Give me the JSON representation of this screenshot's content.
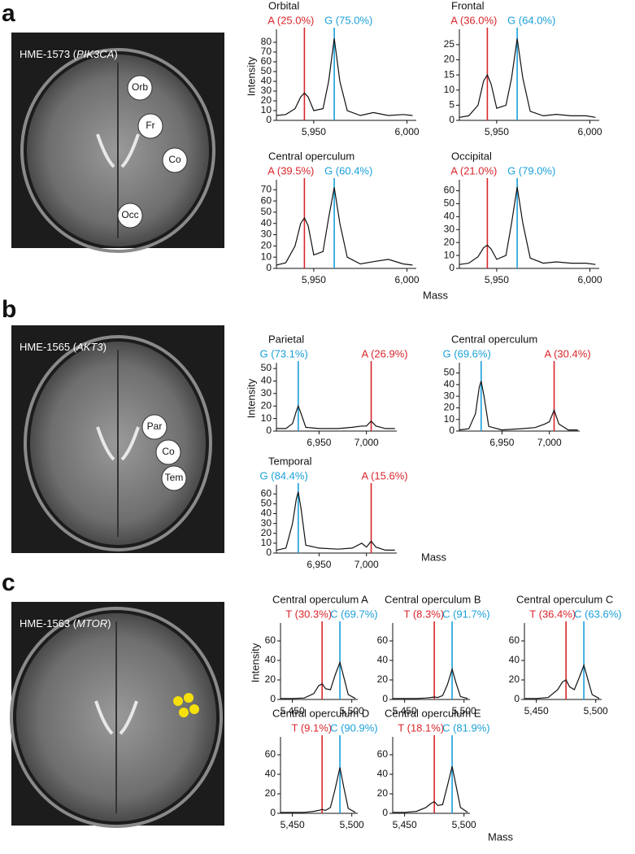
{
  "panels": [
    {
      "letter": "a",
      "caption": "HME-1573 (",
      "gene": "PIK3CA",
      "caption_end": ")",
      "regions": [
        "Orb",
        "Fr",
        "Co",
        "Occ"
      ]
    },
    {
      "letter": "b",
      "caption": "HME-1565 (",
      "gene": "AKT3",
      "caption_end": ")",
      "regions": [
        "Par",
        "Co",
        "Tem"
      ]
    },
    {
      "letter": "c",
      "caption": "HME-1563 (",
      "gene": "MTOR",
      "caption_end": ")",
      "regions": []
    }
  ],
  "chart_data": [
    {
      "type": "line",
      "title": "Orbital",
      "y_label": "Intensity",
      "x": [
        5930,
        5935,
        5940,
        5943,
        5945,
        5947,
        5950,
        5955,
        5958,
        5961,
        5964,
        5968,
        5975,
        5982,
        5990,
        5998,
        6003
      ],
      "values": [
        5,
        6,
        12,
        24,
        28,
        24,
        10,
        12,
        40,
        84,
        40,
        10,
        5,
        8,
        5,
        6,
        5
      ],
      "color": "#111111",
      "markers": [
        {
          "label": "A (25.0%)",
          "x": 5945,
          "color": "#d9262b"
        },
        {
          "label": "G (75.0%)",
          "x": 5961,
          "color": "#1a9fd9"
        }
      ],
      "xlim": [
        5930,
        6005
      ],
      "xticks": [
        {
          "value": 5950,
          "label": "5,950"
        },
        {
          "value": 6000,
          "label": "6,000"
        }
      ],
      "ylim": [
        0,
        90
      ],
      "yticks": [
        0,
        10,
        20,
        30,
        40,
        50,
        60,
        70,
        80
      ]
    },
    {
      "type": "line",
      "title": "Frontal",
      "x": [
        5930,
        5935,
        5940,
        5943,
        5945,
        5947,
        5950,
        5955,
        5958,
        5961,
        5964,
        5968,
        5975,
        5982,
        5990,
        5998,
        6003
      ],
      "values": [
        1,
        1.5,
        5,
        13,
        15,
        12,
        4,
        5,
        14,
        27,
        14,
        3,
        1.5,
        2,
        1.5,
        1.5,
        1
      ],
      "color": "#111111",
      "markers": [
        {
          "label": "A (36.0%)",
          "x": 5945,
          "color": "#d9262b"
        },
        {
          "label": "G (64.0%)",
          "x": 5961,
          "color": "#1a9fd9"
        }
      ],
      "xlim": [
        5930,
        6005
      ],
      "xticks": [
        {
          "value": 5950,
          "label": "5,950"
        },
        {
          "value": 6000,
          "label": "6,000"
        }
      ],
      "ylim": [
        0,
        29
      ],
      "yticks": [
        0,
        5,
        10,
        15,
        20,
        25
      ]
    },
    {
      "type": "line",
      "title": "Central operculum",
      "x": [
        5930,
        5935,
        5940,
        5943,
        5945,
        5947,
        5950,
        5955,
        5958,
        5961,
        5964,
        5968,
        5975,
        5982,
        5990,
        5998,
        6003
      ],
      "values": [
        3,
        5,
        20,
        40,
        45,
        38,
        12,
        15,
        45,
        72,
        40,
        10,
        4,
        6,
        8,
        4,
        3
      ],
      "color": "#111111",
      "markers": [
        {
          "label": "A (39.5%)",
          "x": 5945,
          "color": "#d9262b"
        },
        {
          "label": "G (60.4%)",
          "x": 5961,
          "color": "#1a9fd9"
        }
      ],
      "xlim": [
        5930,
        6005
      ],
      "xticks": [
        {
          "value": 5950,
          "label": "5,950"
        },
        {
          "value": 6000,
          "label": "6,000"
        }
      ],
      "ylim": [
        0,
        76
      ],
      "yticks": [
        0,
        10,
        20,
        30,
        40,
        50,
        60,
        70
      ]
    },
    {
      "type": "line",
      "title": "Occipital",
      "x_label": "Mass",
      "x": [
        5930,
        5935,
        5940,
        5943,
        5945,
        5947,
        5950,
        5955,
        5958,
        5961,
        5964,
        5968,
        5975,
        5982,
        5990,
        5998,
        6003
      ],
      "values": [
        3,
        4,
        9,
        16,
        18,
        15,
        7,
        10,
        35,
        63,
        35,
        8,
        4,
        5,
        4,
        4,
        3
      ],
      "color": "#111111",
      "markers": [
        {
          "label": "A (21.0%)",
          "x": 5945,
          "color": "#d9262b"
        },
        {
          "label": "G (79.0%)",
          "x": 5961,
          "color": "#1a9fd9"
        }
      ],
      "xlim": [
        5930,
        6005
      ],
      "xticks": [
        {
          "value": 5950,
          "label": "5,950"
        },
        {
          "value": 6000,
          "label": "6,000"
        }
      ],
      "ylim": [
        0,
        66
      ],
      "yticks": [
        0,
        10,
        20,
        30,
        40,
        50,
        60
      ]
    },
    {
      "type": "line",
      "title": "Parietal",
      "y_label": "Intensity",
      "x": [
        6905,
        6915,
        6922,
        6926,
        6928,
        6931,
        6936,
        6950,
        6970,
        6985,
        6995,
        7000,
        7005,
        7010,
        7020,
        7030
      ],
      "values": [
        2,
        2,
        6,
        16,
        20,
        14,
        3,
        2,
        2,
        3,
        4,
        4,
        8,
        4,
        2,
        2
      ],
      "color": "#111111",
      "markers": [
        {
          "label": "G (73.1%)",
          "x": 6928,
          "color": "#1a9fd9"
        },
        {
          "label": "A (26.9%)",
          "x": 7005,
          "color": "#d9262b"
        }
      ],
      "xlim": [
        6905,
        7032
      ],
      "xticks": [
        {
          "value": 6950,
          "label": "6,950"
        },
        {
          "value": 7000,
          "label": "7,000"
        }
      ],
      "ylim": [
        0,
        52
      ],
      "yticks": [
        0,
        10,
        20,
        30,
        40,
        50
      ]
    },
    {
      "type": "line",
      "title": "Central operculum",
      "x": [
        6905,
        6915,
        6922,
        6926,
        6928,
        6931,
        6936,
        6950,
        6970,
        6985,
        6995,
        7000,
        7005,
        7010,
        7020,
        7030
      ],
      "values": [
        1,
        2,
        15,
        38,
        43,
        30,
        4,
        1,
        2,
        3,
        6,
        8,
        18,
        6,
        1,
        1
      ],
      "color": "#111111",
      "markers": [
        {
          "label": "G (69.6%)",
          "x": 6928,
          "color": "#1a9fd9"
        },
        {
          "label": "A (30.4%)",
          "x": 7005,
          "color": "#d9262b"
        }
      ],
      "xlim": [
        6905,
        7032
      ],
      "xticks": [
        {
          "value": 6950,
          "label": "6,950"
        },
        {
          "value": 7000,
          "label": "7,000"
        }
      ],
      "ylim": [
        0,
        56
      ],
      "yticks": [
        0,
        10,
        20,
        30,
        40,
        50
      ]
    },
    {
      "type": "line",
      "title": "Temporal",
      "x_label": "Mass",
      "x": [
        6905,
        6915,
        6922,
        6926,
        6928,
        6931,
        6936,
        6950,
        6970,
        6985,
        6995,
        7000,
        7005,
        7010,
        7020,
        7030
      ],
      "values": [
        3,
        5,
        30,
        55,
        62,
        45,
        8,
        5,
        4,
        5,
        10,
        6,
        12,
        6,
        3,
        3
      ],
      "color": "#111111",
      "markers": [
        {
          "label": "G (84.4%)",
          "x": 6928,
          "color": "#1a9fd9"
        },
        {
          "label": "A (15.6%)",
          "x": 7005,
          "color": "#d9262b"
        }
      ],
      "xlim": [
        6905,
        7032
      ],
      "xticks": [
        {
          "value": 6950,
          "label": "6,950"
        },
        {
          "value": 7000,
          "label": "7,000"
        }
      ],
      "ylim": [
        0,
        66
      ],
      "yticks": [
        0,
        10,
        20,
        30,
        40,
        50,
        60
      ]
    },
    {
      "type": "line",
      "title": "Central operculum A",
      "y_label": "Intensity",
      "x": [
        5440,
        5450,
        5460,
        5468,
        5472,
        5475,
        5478,
        5482,
        5486,
        5490,
        5493,
        5497,
        5503
      ],
      "values": [
        1,
        1,
        1.5,
        6,
        14,
        16,
        11,
        10,
        25,
        38,
        24,
        5,
        1
      ],
      "color": "#111111",
      "markers": [
        {
          "label": "T (30.3%)",
          "x": 5475,
          "color": "#d9262b"
        },
        {
          "label": "C (69.7%)",
          "x": 5490,
          "color": "#1a9fd9"
        }
      ],
      "xlim": [
        5440,
        5505
      ],
      "xticks": [
        {
          "value": 5450,
          "label": "5,450"
        },
        {
          "value": 5500,
          "label": "5,500"
        }
      ],
      "ylim": [
        0,
        75
      ],
      "yticks": [
        0,
        20,
        40,
        60
      ]
    },
    {
      "type": "line",
      "title": "Central operculum B",
      "x": [
        5440,
        5450,
        5460,
        5468,
        5472,
        5475,
        5478,
        5482,
        5486,
        5490,
        5493,
        5497,
        5503
      ],
      "values": [
        1,
        1,
        1,
        1.5,
        2,
        2.5,
        2,
        4,
        15,
        31,
        18,
        3,
        1
      ],
      "color": "#111111",
      "markers": [
        {
          "label": "T (8.3%)",
          "x": 5475,
          "color": "#d9262b"
        },
        {
          "label": "C (91.7%)",
          "x": 5490,
          "color": "#1a9fd9"
        }
      ],
      "xlim": [
        5440,
        5505
      ],
      "xticks": [
        {
          "value": 5450,
          "label": "5,450"
        },
        {
          "value": 5500,
          "label": "5,500"
        }
      ],
      "ylim": [
        0,
        75
      ],
      "yticks": [
        0,
        20,
        40,
        60
      ]
    },
    {
      "type": "line",
      "title": "Central operculum C",
      "x": [
        5440,
        5450,
        5460,
        5468,
        5472,
        5475,
        5478,
        5482,
        5486,
        5490,
        5493,
        5497,
        5503
      ],
      "values": [
        1,
        1,
        2,
        10,
        18,
        20,
        13,
        10,
        22,
        35,
        22,
        5,
        1
      ],
      "color": "#111111",
      "markers": [
        {
          "label": "T (36.4%)",
          "x": 5475,
          "color": "#d9262b"
        },
        {
          "label": "C (63.6%)",
          "x": 5490,
          "color": "#1a9fd9"
        }
      ],
      "xlim": [
        5440,
        5505
      ],
      "xticks": [
        {
          "value": 5450,
          "label": "5,450"
        },
        {
          "value": 5500,
          "label": "5,500"
        }
      ],
      "ylim": [
        0,
        75
      ],
      "yticks": [
        0,
        20,
        40,
        60
      ]
    },
    {
      "type": "line",
      "title": "Central operculum D",
      "x": [
        5440,
        5450,
        5460,
        5468,
        5472,
        5475,
        5478,
        5482,
        5486,
        5490,
        5493,
        5497,
        5503
      ],
      "values": [
        1,
        1,
        1,
        2,
        3,
        4,
        3,
        6,
        25,
        47,
        28,
        5,
        1
      ],
      "color": "#111111",
      "markers": [
        {
          "label": "T (9.1%)",
          "x": 5475,
          "color": "#d9262b"
        },
        {
          "label": "C (90.9%)",
          "x": 5490,
          "color": "#1a9fd9"
        }
      ],
      "xlim": [
        5440,
        5505
      ],
      "xticks": [
        {
          "value": 5450,
          "label": "5,450"
        },
        {
          "value": 5500,
          "label": "5,500"
        }
      ],
      "ylim": [
        0,
        75
      ],
      "yticks": [
        0,
        20,
        40,
        60
      ]
    },
    {
      "type": "line",
      "title": "Central operculum E",
      "x_label": "Mass",
      "x": [
        5440,
        5450,
        5460,
        5468,
        5472,
        5475,
        5478,
        5482,
        5486,
        5490,
        5493,
        5497,
        5503
      ],
      "values": [
        1,
        1,
        2,
        6,
        10,
        12,
        8,
        9,
        28,
        48,
        30,
        6,
        1
      ],
      "color": "#111111",
      "markers": [
        {
          "label": "T (18.1%)",
          "x": 5475,
          "color": "#d9262b"
        },
        {
          "label": "C (81.9%)",
          "x": 5490,
          "color": "#1a9fd9"
        }
      ],
      "xlim": [
        5440,
        5505
      ],
      "xticks": [
        {
          "value": 5450,
          "label": "5,450"
        },
        {
          "value": 5500,
          "label": "5,500"
        }
      ],
      "ylim": [
        0,
        75
      ],
      "yticks": [
        0,
        20,
        40,
        60
      ]
    }
  ]
}
